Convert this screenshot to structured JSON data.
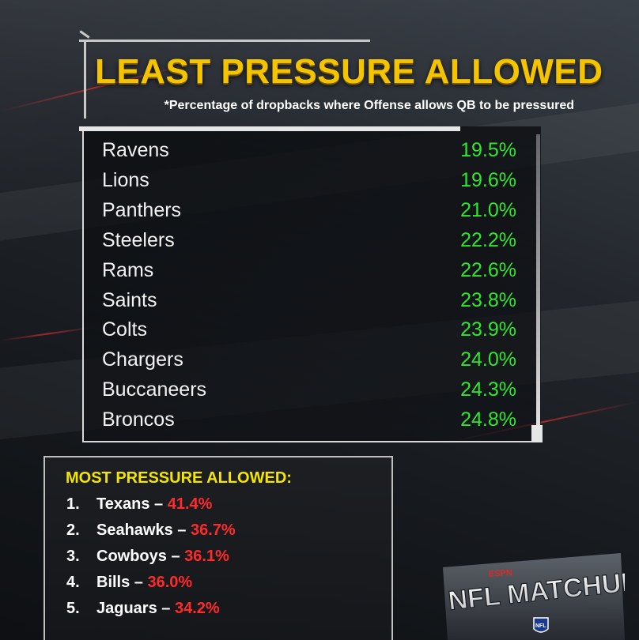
{
  "header": {
    "title": "LEAST PRESSURE ALLOWED",
    "subtitle": "*Percentage of dropbacks where Offense allows QB to be pressured"
  },
  "least_pressure": [
    {
      "team": "Ravens",
      "pct": "19.5%"
    },
    {
      "team": "Lions",
      "pct": "19.6%"
    },
    {
      "team": "Panthers",
      "pct": "21.0%"
    },
    {
      "team": "Steelers",
      "pct": "22.2%"
    },
    {
      "team": "Rams",
      "pct": "22.6%"
    },
    {
      "team": "Saints",
      "pct": "23.8%"
    },
    {
      "team": "Colts",
      "pct": "23.9%"
    },
    {
      "team": "Chargers",
      "pct": "24.0%"
    },
    {
      "team": "Buccaneers",
      "pct": "24.3%"
    },
    {
      "team": "Broncos",
      "pct": "24.8%"
    }
  ],
  "most_pressure": {
    "title": "MOST PRESSURE ALLOWED:",
    "items": [
      {
        "rank": "1.",
        "team": "Texans",
        "sep": " – ",
        "pct": "41.4%"
      },
      {
        "rank": "2.",
        "team": "Seahawks",
        "sep": " – ",
        "pct": "36.7%"
      },
      {
        "rank": "3.",
        "team": "Cowboys",
        "sep": " – ",
        "pct": "36.1%"
      },
      {
        "rank": "4.",
        "team": "Bills",
        "sep": " – ",
        "pct": "36.0%"
      },
      {
        "rank": "5.",
        "team": "Jaguars",
        "sep": " – ",
        "pct": "34.2%"
      }
    ]
  },
  "logo": {
    "brand": "ESPN",
    "show": "NFL MATCHUP",
    "badge": "NFL"
  },
  "colors": {
    "title": "#f5c400",
    "good_pct": "#2ee82e",
    "bad_pct": "#ff2a2a",
    "most_title": "#f5e600"
  }
}
